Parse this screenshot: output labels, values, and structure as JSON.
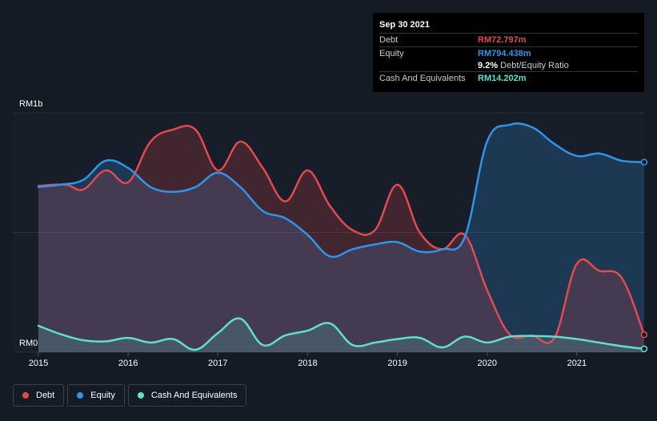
{
  "tooltip": {
    "date": "Sep 30 2021",
    "debt_label": "Debt",
    "debt_value": "RM72.797m",
    "equity_label": "Equity",
    "equity_value": "RM794.438m",
    "ratio_value": "9.2%",
    "ratio_label": "Debt/Equity Ratio",
    "cash_label": "Cash And Equivalents",
    "cash_value": "RM14.202m"
  },
  "legend": [
    {
      "label": "Debt",
      "color": "#e64850"
    },
    {
      "label": "Equity",
      "color": "#2f95e8"
    },
    {
      "label": "Cash And Equivalents",
      "color": "#5ee0cc"
    }
  ],
  "chart_data": {
    "type": "area",
    "y_top_label": "RM1b",
    "y_bottom_label": "RM0",
    "unit": "RM million",
    "ylim": [
      0,
      1000
    ],
    "xlim": [
      2015.0,
      2021.75
    ],
    "x_ticks": [
      {
        "value": 2015,
        "label": "2015"
      },
      {
        "value": 2016,
        "label": "2016"
      },
      {
        "value": 2017,
        "label": "2017"
      },
      {
        "value": 2018,
        "label": "2018"
      },
      {
        "value": 2019,
        "label": "2019"
      },
      {
        "value": 2020,
        "label": "2020"
      },
      {
        "value": 2021,
        "label": "2021"
      }
    ],
    "grid": true,
    "legend_position": "bottom-left",
    "series": [
      {
        "name": "Debt",
        "color": "#e64850",
        "points": [
          [
            2015.0,
            695
          ],
          [
            2015.3,
            700
          ],
          [
            2015.5,
            680
          ],
          [
            2015.75,
            760
          ],
          [
            2016.0,
            710
          ],
          [
            2016.25,
            880
          ],
          [
            2016.5,
            930
          ],
          [
            2016.75,
            930
          ],
          [
            2017.0,
            760
          ],
          [
            2017.25,
            880
          ],
          [
            2017.5,
            770
          ],
          [
            2017.75,
            630
          ],
          [
            2018.0,
            760
          ],
          [
            2018.25,
            610
          ],
          [
            2018.5,
            510
          ],
          [
            2018.75,
            510
          ],
          [
            2019.0,
            700
          ],
          [
            2019.25,
            500
          ],
          [
            2019.5,
            430
          ],
          [
            2019.75,
            490
          ],
          [
            2020.0,
            260
          ],
          [
            2020.25,
            75
          ],
          [
            2020.5,
            70
          ],
          [
            2020.75,
            60
          ],
          [
            2021.0,
            370
          ],
          [
            2021.25,
            340
          ],
          [
            2021.5,
            310
          ],
          [
            2021.75,
            73
          ]
        ]
      },
      {
        "name": "Equity",
        "color": "#2f95e8",
        "points": [
          [
            2015.0,
            690
          ],
          [
            2015.25,
            700
          ],
          [
            2015.5,
            720
          ],
          [
            2015.75,
            800
          ],
          [
            2016.0,
            770
          ],
          [
            2016.25,
            690
          ],
          [
            2016.5,
            670
          ],
          [
            2016.75,
            690
          ],
          [
            2017.0,
            750
          ],
          [
            2017.25,
            690
          ],
          [
            2017.5,
            590
          ],
          [
            2017.75,
            560
          ],
          [
            2018.0,
            490
          ],
          [
            2018.25,
            400
          ],
          [
            2018.5,
            430
          ],
          [
            2018.75,
            450
          ],
          [
            2019.0,
            460
          ],
          [
            2019.25,
            420
          ],
          [
            2019.5,
            430
          ],
          [
            2019.75,
            480
          ],
          [
            2020.0,
            880
          ],
          [
            2020.25,
            950
          ],
          [
            2020.5,
            940
          ],
          [
            2020.75,
            870
          ],
          [
            2021.0,
            820
          ],
          [
            2021.25,
            830
          ],
          [
            2021.5,
            800
          ],
          [
            2021.75,
            794
          ]
        ]
      },
      {
        "name": "Cash And Equivalents",
        "color": "#5ee0cc",
        "points": [
          [
            2015.0,
            110
          ],
          [
            2015.25,
            75
          ],
          [
            2015.5,
            50
          ],
          [
            2015.75,
            45
          ],
          [
            2016.0,
            60
          ],
          [
            2016.25,
            40
          ],
          [
            2016.5,
            55
          ],
          [
            2016.75,
            10
          ],
          [
            2017.0,
            80
          ],
          [
            2017.25,
            140
          ],
          [
            2017.5,
            30
          ],
          [
            2017.75,
            70
          ],
          [
            2018.0,
            90
          ],
          [
            2018.25,
            120
          ],
          [
            2018.5,
            30
          ],
          [
            2018.75,
            40
          ],
          [
            2019.0,
            55
          ],
          [
            2019.25,
            60
          ],
          [
            2019.5,
            20
          ],
          [
            2019.75,
            65
          ],
          [
            2020.0,
            40
          ],
          [
            2020.25,
            65
          ],
          [
            2020.5,
            68
          ],
          [
            2020.75,
            65
          ],
          [
            2021.0,
            55
          ],
          [
            2021.25,
            40
          ],
          [
            2021.5,
            25
          ],
          [
            2021.75,
            14
          ]
        ]
      }
    ]
  }
}
